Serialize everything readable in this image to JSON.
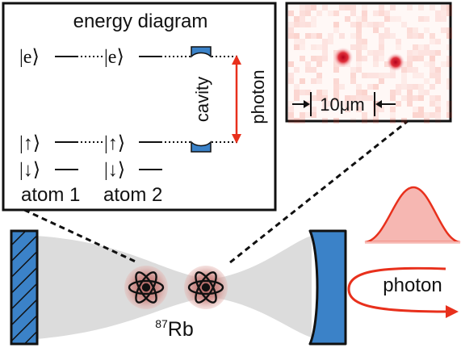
{
  "inset_left": {
    "title": "energy diagram",
    "states": {
      "excited": "|e⟩",
      "up": "|↑⟩",
      "down": "|↓⟩"
    },
    "atom1_label": "atom 1",
    "atom2_label": "atom 2",
    "cavity_label": "cavity",
    "photon_label": "photon"
  },
  "inset_right": {
    "scale_label": "10μm"
  },
  "main": {
    "atom_label_sup": "87",
    "atom_label_main": "Rb",
    "photon_label": "photon"
  },
  "colors": {
    "mirror_blue": "#3b82c8",
    "beam_gray": "#dcdcdc",
    "photon_red": "#e8301c",
    "photon_fill": "#f6b7b2",
    "atom_glow": "#c9726e"
  }
}
